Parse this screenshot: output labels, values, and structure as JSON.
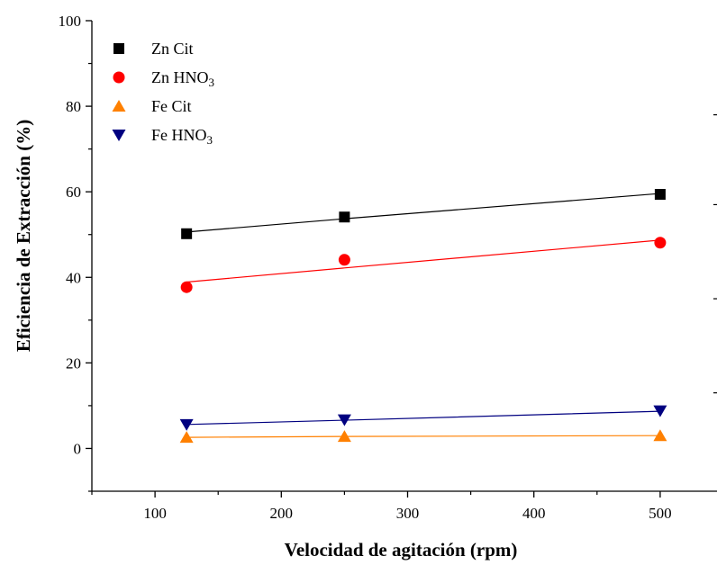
{
  "chart_data": {
    "type": "scatter",
    "title": "",
    "xlabel": "Velocidad de agitación (rpm)",
    "ylabel": "Eficiencia de Extracción (%)",
    "xlim": [
      50,
      545
    ],
    "ylim": [
      -10,
      100
    ],
    "xticks": [
      100,
      200,
      300,
      400,
      500
    ],
    "yticks": [
      0,
      20,
      40,
      60,
      80,
      100
    ],
    "grid": false,
    "legend_position": "top-left",
    "series": [
      {
        "name": "Zn  Cit",
        "legend_main": "Zn  Cit",
        "legend_sub": "",
        "marker": "square",
        "color": "#000000",
        "x": [
          125,
          250,
          500
        ],
        "y": [
          50.2,
          54.1,
          59.4
        ],
        "fit_y": [
          50.6,
          53.7,
          59.6
        ]
      },
      {
        "name": "Zn HNO3",
        "legend_main": "Zn HNO",
        "legend_sub": "3",
        "marker": "circle",
        "color": "#ff0000",
        "x": [
          125,
          250,
          500
        ],
        "y": [
          37.7,
          44.1,
          48.1
        ],
        "fit_y": [
          38.9,
          42.2,
          48.7
        ]
      },
      {
        "name": "Fe Cit",
        "legend_main": "Fe Cit",
        "legend_sub": "",
        "marker": "triangle-up",
        "color": "#ff8000",
        "x": [
          125,
          250,
          500
        ],
        "y": [
          2.6,
          2.8,
          3.0
        ],
        "fit_y": [
          2.6,
          2.8,
          3.0
        ]
      },
      {
        "name": "Fe HNO3",
        "legend_main": "Fe HNO",
        "legend_sub": "3",
        "marker": "triangle-down",
        "color": "#000080",
        "x": [
          125,
          250,
          500
        ],
        "y": [
          5.6,
          6.7,
          8.8
        ],
        "fit_y": [
          5.6,
          6.6,
          8.7
        ]
      }
    ]
  }
}
